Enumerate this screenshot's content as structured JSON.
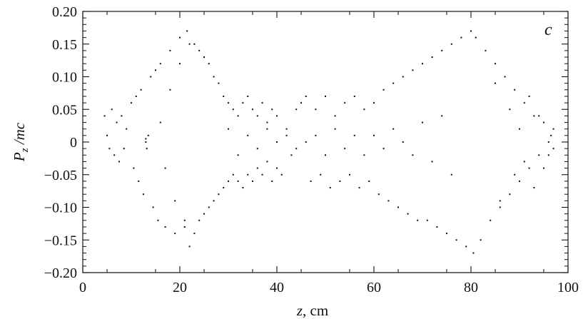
{
  "chart_data": {
    "type": "scatter",
    "panel_label": "c",
    "xlabel": {
      "var": "z",
      "unit": ", cm"
    },
    "ylabel": {
      "var": "P",
      "sub": "z",
      "rest": " /mc"
    },
    "xlim": [
      0,
      100
    ],
    "ylim": [
      -0.2,
      0.2
    ],
    "xticks": [
      0,
      20,
      40,
      60,
      80,
      100
    ],
    "xtick_labels": [
      "0",
      "20",
      "40",
      "60",
      "80",
      "100"
    ],
    "yticks": [
      -0.2,
      -0.15,
      -0.1,
      -0.05,
      0,
      0.05,
      0.1,
      0.15,
      0.2
    ],
    "ytick_labels": [
      "−0.20",
      "−0.15",
      "−0.10",
      "−0.05",
      "0",
      "0.05",
      "0.10",
      "0.15",
      "0.20"
    ],
    "grid": false,
    "marker_color": "#111111",
    "series": [
      {
        "points": [
          [
            4.5,
            0.04
          ],
          [
            5,
            0.01
          ],
          [
            5.5,
            -0.01
          ],
          [
            6,
            0.05
          ],
          [
            6.5,
            -0.02
          ],
          [
            7,
            0.03
          ],
          [
            7.5,
            -0.03
          ],
          [
            8,
            0.04
          ],
          [
            8.5,
            -0.01
          ],
          [
            9,
            0.02
          ],
          [
            10,
            0.06
          ],
          [
            10.5,
            -0.04
          ],
          [
            11,
            0.07
          ],
          [
            11.5,
            -0.06
          ],
          [
            12,
            0.08
          ],
          [
            12.5,
            -0.08
          ],
          [
            13,
            0.0
          ],
          [
            13.2,
            -0.01
          ],
          [
            13.5,
            0.01
          ],
          [
            13,
            0.005
          ],
          [
            14,
            0.1
          ],
          [
            14.5,
            -0.1
          ],
          [
            15,
            0.11
          ],
          [
            15.5,
            -0.12
          ],
          [
            16,
            0.12
          ],
          [
            17,
            -0.13
          ],
          [
            18,
            0.14
          ],
          [
            19,
            -0.14
          ],
          [
            20,
            0.16
          ],
          [
            21,
            -0.13
          ],
          [
            21.5,
            0.17
          ],
          [
            22,
            -0.16
          ],
          [
            23,
            0.15
          ],
          [
            24,
            0.14
          ],
          [
            25,
            0.13
          ],
          [
            26,
            0.12
          ],
          [
            27,
            0.1
          ],
          [
            28,
            0.09
          ],
          [
            29,
            0.07
          ],
          [
            30,
            0.06
          ],
          [
            31,
            0.05
          ],
          [
            32,
            0.04
          ],
          [
            33,
            0.06
          ],
          [
            34,
            0.07
          ],
          [
            35,
            0.05
          ],
          [
            36,
            0.04
          ],
          [
            37,
            0.06
          ],
          [
            38,
            0.03
          ],
          [
            39,
            0.05
          ],
          [
            40,
            0.04
          ],
          [
            24,
            -0.12
          ],
          [
            25,
            -0.11
          ],
          [
            26,
            -0.1
          ],
          [
            27,
            -0.09
          ],
          [
            28,
            -0.08
          ],
          [
            29,
            -0.07
          ],
          [
            30,
            -0.06
          ],
          [
            31,
            -0.05
          ],
          [
            32,
            -0.06
          ],
          [
            33,
            -0.07
          ],
          [
            34,
            -0.05
          ],
          [
            35,
            -0.06
          ],
          [
            36,
            -0.04
          ],
          [
            37,
            -0.05
          ],
          [
            38,
            -0.03
          ],
          [
            39,
            -0.06
          ],
          [
            40,
            -0.04
          ],
          [
            41,
            -0.05
          ],
          [
            42,
            0.01
          ],
          [
            43,
            -0.02
          ],
          [
            44,
            0.05
          ],
          [
            45,
            0.06
          ],
          [
            46,
            0.07
          ],
          [
            47,
            -0.06
          ],
          [
            48,
            0.05
          ],
          [
            49,
            -0.05
          ],
          [
            50,
            0.07
          ],
          [
            51,
            -0.07
          ],
          [
            52,
            0.04
          ],
          [
            53,
            -0.06
          ],
          [
            54,
            0.06
          ],
          [
            55,
            -0.05
          ],
          [
            56,
            0.07
          ],
          [
            57,
            -0.07
          ],
          [
            58,
            0.05
          ],
          [
            59,
            -0.06
          ],
          [
            60,
            0.06
          ],
          [
            61,
            -0.08
          ],
          [
            62,
            0.08
          ],
          [
            63,
            -0.09
          ],
          [
            64,
            0.09
          ],
          [
            65,
            -0.1
          ],
          [
            66,
            0.1
          ],
          [
            67,
            -0.11
          ],
          [
            68,
            0.11
          ],
          [
            69,
            -0.12
          ],
          [
            70,
            0.12
          ],
          [
            71,
            -0.12
          ],
          [
            72,
            0.13
          ],
          [
            73,
            -0.13
          ],
          [
            74,
            0.14
          ],
          [
            75,
            -0.14
          ],
          [
            76,
            0.15
          ],
          [
            77,
            -0.15
          ],
          [
            78,
            0.16
          ],
          [
            79,
            -0.16
          ],
          [
            80,
            0.17
          ],
          [
            80.5,
            -0.17
          ],
          [
            81,
            0.16
          ],
          [
            82,
            -0.15
          ],
          [
            83,
            0.14
          ],
          [
            84,
            -0.12
          ],
          [
            85,
            0.12
          ],
          [
            86,
            -0.1
          ],
          [
            87,
            0.1
          ],
          [
            88,
            -0.08
          ],
          [
            89,
            0.08
          ],
          [
            90,
            -0.06
          ],
          [
            91,
            0.06
          ],
          [
            92,
            -0.04
          ],
          [
            93,
            0.04
          ],
          [
            94,
            -0.02
          ],
          [
            95,
            0.03
          ],
          [
            96,
            0.0
          ],
          [
            96.5,
            0.01
          ],
          [
            97,
            -0.01
          ],
          [
            40,
            0.0
          ],
          [
            42,
            0.02
          ],
          [
            44,
            -0.01
          ],
          [
            46,
            0.0
          ],
          [
            48,
            0.01
          ],
          [
            50,
            -0.02
          ],
          [
            52,
            0.02
          ],
          [
            54,
            -0.01
          ],
          [
            56,
            0.01
          ],
          [
            58,
            -0.02
          ],
          [
            60,
            0.01
          ],
          [
            62,
            -0.01
          ],
          [
            64,
            0.02
          ],
          [
            66,
            0.0
          ],
          [
            30,
            0.02
          ],
          [
            32,
            -0.02
          ],
          [
            34,
            0.01
          ],
          [
            36,
            -0.01
          ],
          [
            38,
            0.02
          ],
          [
            68,
            -0.02
          ],
          [
            70,
            0.03
          ],
          [
            72,
            -0.03
          ],
          [
            74,
            0.04
          ],
          [
            76,
            -0.05
          ],
          [
            16,
            0.03
          ],
          [
            17,
            -0.04
          ],
          [
            18,
            0.08
          ],
          [
            19,
            -0.09
          ],
          [
            20,
            0.12
          ],
          [
            21,
            -0.12
          ],
          [
            22,
            0.15
          ],
          [
            23,
            -0.14
          ],
          [
            85,
            0.09
          ],
          [
            86,
            -0.09
          ],
          [
            88,
            0.05
          ],
          [
            89,
            -0.05
          ],
          [
            90,
            0.02
          ],
          [
            91,
            -0.03
          ],
          [
            92,
            0.07
          ],
          [
            93,
            -0.07
          ],
          [
            94,
            0.04
          ],
          [
            95,
            -0.04
          ],
          [
            97,
            0.02
          ],
          [
            96,
            -0.02
          ]
        ]
      }
    ]
  }
}
